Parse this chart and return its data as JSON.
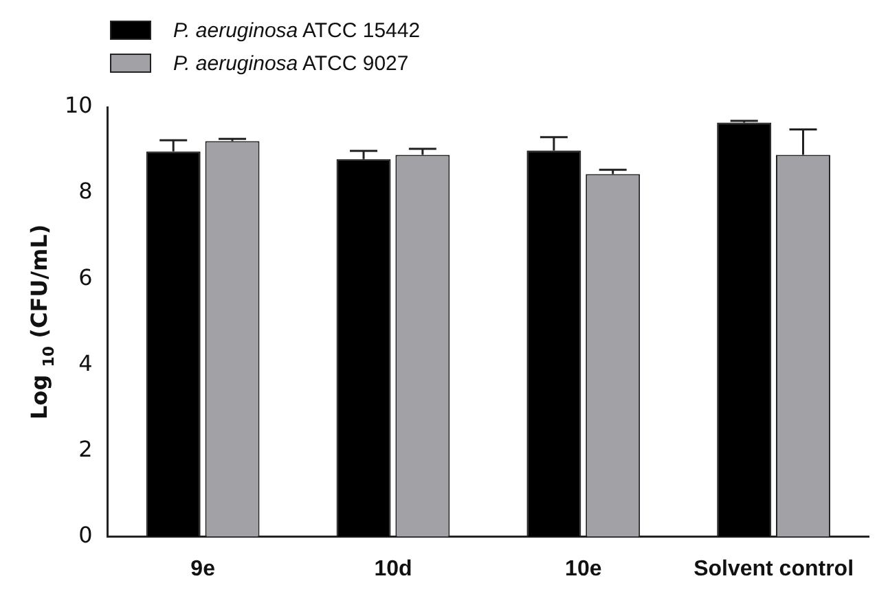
{
  "chart_data": {
    "type": "bar",
    "ylabel": "Log $_{10}$ (CFU/mL)",
    "categories": [
      "9e",
      "10d",
      "10e",
      "Solvent control"
    ],
    "series": [
      {
        "name": "P. aeruginosa ATCC 15442",
        "color": "#000000",
        "values": [
          8.97,
          8.79,
          8.99,
          9.64
        ],
        "errors": [
          0.26,
          0.19,
          0.31,
          0.04
        ]
      },
      {
        "name": "P. aeruginosa ATCC 9027",
        "color": "#a2a1a6",
        "values": [
          9.21,
          8.89,
          8.44,
          8.89
        ],
        "errors": [
          0.05,
          0.14,
          0.1,
          0.59
        ]
      }
    ],
    "ylim": [
      0,
      10
    ],
    "yticks": [
      0,
      2,
      4,
      6,
      8,
      10
    ],
    "grid": false,
    "legend": "top left"
  }
}
